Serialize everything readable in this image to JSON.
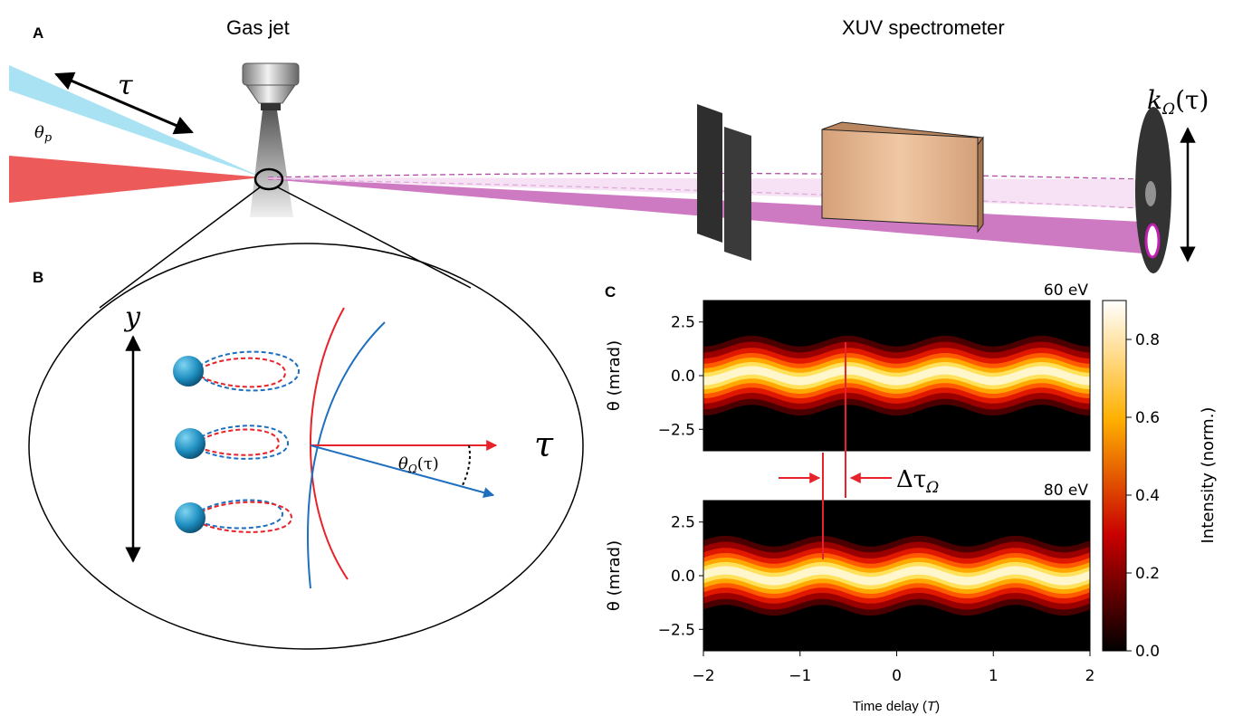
{
  "panels": {
    "a": {
      "letter": "A",
      "gas_jet_title": "Gas  jet",
      "spectrometer_title": "XUV spectrometer",
      "tau": "τ",
      "theta_p": "θ",
      "theta_p_sub": "p",
      "k_omega": "k",
      "k_omega_sub": "Ω",
      "k_omega_arg": "(τ)"
    },
    "b": {
      "letter": "B",
      "y_label": "y",
      "tau_label": "τ",
      "theta_omega": "θ",
      "theta_omega_sub": "Ω",
      "theta_omega_arg": "(τ)"
    },
    "c": {
      "letter": "C",
      "delta_tau": "Δτ",
      "delta_tau_sub": "Ω",
      "xlabel": "Time delay (",
      "xlabel_unit": "T",
      "xlabel_close": ")",
      "colorbar_label": "Intensity (norm.)",
      "colorbar_ticks": [
        "0.0",
        "0.2",
        "0.4",
        "0.6",
        "0.8"
      ]
    }
  },
  "chart_data": [
    {
      "type": "heatmap",
      "title": "60 eV",
      "xlabel": "Time delay (T)",
      "ylabel": "θ (mrad)",
      "xlim": [
        -2,
        2
      ],
      "ylim": [
        -3.5,
        3.5
      ],
      "xticks": [
        "−2",
        "−1",
        "0",
        "1",
        "2"
      ],
      "yticks": [
        "2.5",
        "0.0",
        "−2.5"
      ],
      "ytick_values": [
        2.5,
        0.0,
        -2.5
      ],
      "band_width_mrad": 1.4,
      "oscillation_amplitude_mrad": 0.25,
      "oscillation_period_T": 1,
      "phase_T": -0.5,
      "colormap": "hot",
      "clim": [
        0.0,
        0.9
      ]
    },
    {
      "type": "heatmap",
      "title": "80 eV",
      "xlabel": "Time delay (T)",
      "ylabel": "θ (mrad)",
      "xlim": [
        -2,
        2
      ],
      "ylim": [
        -3.5,
        3.5
      ],
      "xticks": [
        "−2",
        "−1",
        "0",
        "1",
        "2"
      ],
      "yticks": [
        "2.5",
        "0.0",
        "−2.5"
      ],
      "ytick_values": [
        2.5,
        0.0,
        -2.5
      ],
      "band_width_mrad": 1.4,
      "oscillation_amplitude_mrad": 0.25,
      "oscillation_period_T": 1,
      "phase_T": -0.77,
      "colormap": "hot",
      "clim": [
        0.0,
        0.9
      ]
    }
  ],
  "colors": {
    "probe_beam": "#a9e2f2",
    "drive_beam": "#ec5a5a",
    "harmonic_beam": "#c563b8",
    "spectrometer_body": "#d99a6a",
    "slit": "#333333",
    "red_marker": "#e8222a",
    "blue_marker": "#1e6fbf",
    "atom": "#1f8fc0"
  }
}
